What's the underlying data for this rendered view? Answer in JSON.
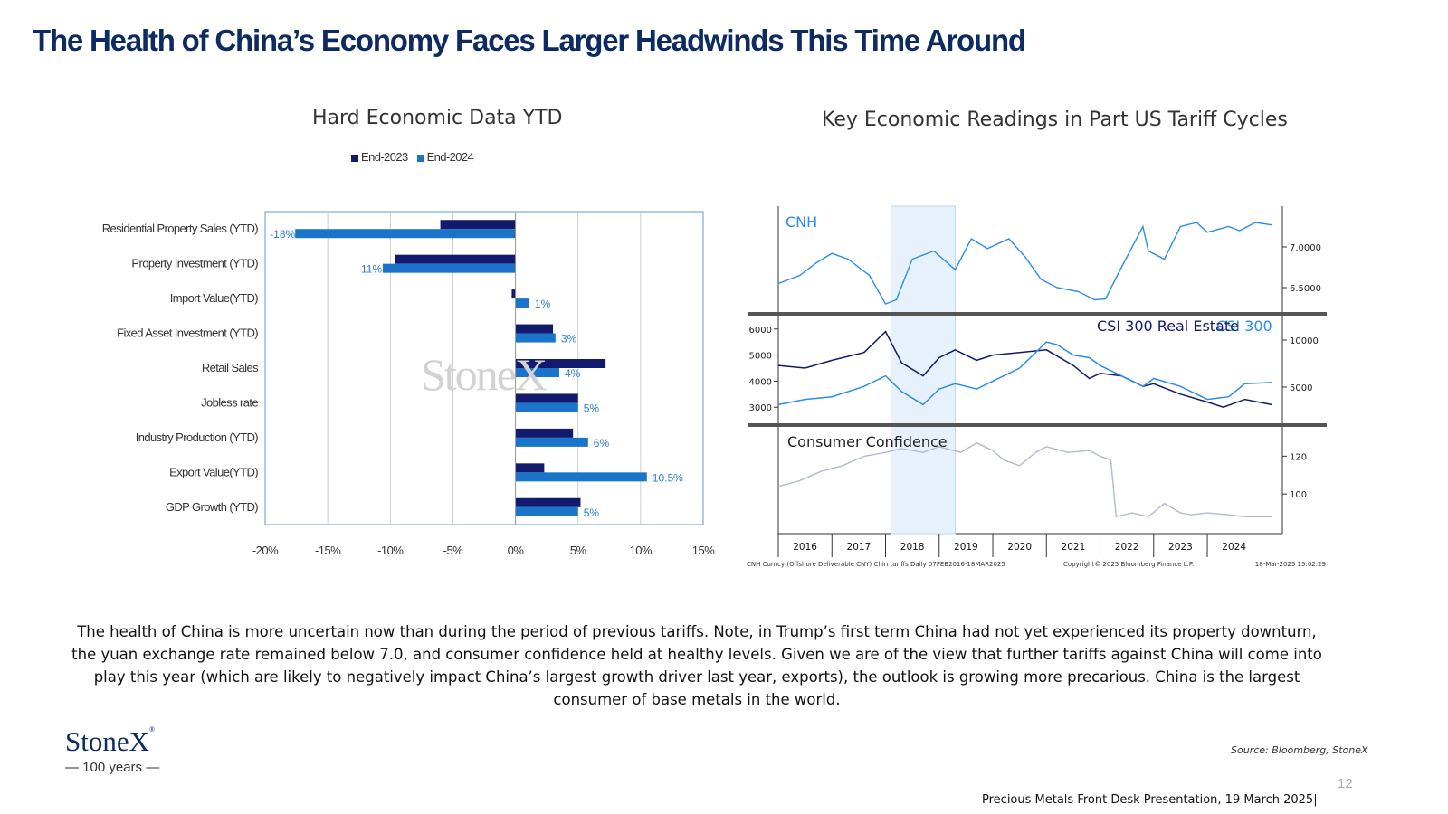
{
  "page": {
    "title": "The Health of China’s Economy Faces Larger Headwinds This Time Around",
    "paragraph": "The health of China is more uncertain now than during the period of previous tariffs. Note, in Trump’s first term China had not yet experienced its property downturn, the yuan exchange rate remained below 7.0, and consumer confidence held at healthy levels. Given we are of the view that further tariffs against China will come into play this year (which are likely to negatively impact China’s largest growth driver last year, exports), the outlook is growing more precarious. China is the largest consumer of base metals in the world.",
    "source": "Source: Bloomberg, StoneX",
    "page_number": "12",
    "footer": "Precious Metals Front Desk Presentation, 19 March 2025|",
    "logo": "StoneX",
    "logo_tagline": "— 100 years —",
    "watermark": "StoneX",
    "colors": {
      "title": "#0d2a63",
      "series_2023": "#121a6e",
      "series_2024": "#1a74c9"
    }
  },
  "chart_data": [
    {
      "type": "bar",
      "orientation": "horizontal",
      "title": "Hard Economic Data YTD",
      "categories": [
        "Residential Property Sales (YTD)",
        "Property Investment (YTD)",
        "Import Value(YTD)",
        "Fixed Asset Investment (YTD)",
        "Retail Sales",
        "Jobless rate",
        "Industry Production (YTD)",
        "Export Value(YTD)",
        "GDP Growth (YTD)"
      ],
      "series": [
        {
          "name": "End-2023",
          "color": "#121a6e",
          "values": [
            -6.0,
            -9.6,
            -0.3,
            3.0,
            7.2,
            5.0,
            4.6,
            2.3,
            5.2
          ]
        },
        {
          "name": "End-2024",
          "color": "#1a74c9",
          "values": [
            -17.6,
            -10.6,
            1.1,
            3.2,
            3.5,
            5.0,
            5.8,
            10.5,
            5.0
          ]
        }
      ],
      "data_labels": [
        "-18%",
        "-11%",
        "1%",
        "3%",
        "4%",
        "5%",
        "6%",
        "10.5%",
        "5%"
      ],
      "xlim": [
        -20,
        15
      ],
      "x_ticks": [
        "-20%",
        "-15%",
        "-10%",
        "-5%",
        "0%",
        "5%",
        "10%",
        "15%"
      ],
      "x_tick_values": [
        -20,
        -15,
        -10,
        -5,
        0,
        5,
        10,
        15
      ],
      "legend": "top",
      "grid": true
    },
    {
      "type": "line",
      "title": "Key Economic Readings in Part US Tariff Cycles",
      "x_ticks": [
        "2016",
        "2017",
        "2018",
        "2019",
        "2020",
        "2021",
        "2022",
        "2023",
        "2024"
      ],
      "highlight": {
        "from": 2018.1,
        "to": 2019.3
      },
      "footer_left": "CNH Curncy (Offshore Deliverable CNY) Chin tariffs  Daily 07FEB2016-18MAR2025",
      "footer_mid": "Copyright© 2025 Bloomberg Finance L.P.",
      "footer_right": "18-Mar-2025 15:02:29",
      "panels": [
        {
          "label": "CNH",
          "right_ticks": [
            "7.0000",
            "6.5000"
          ],
          "right_tick_values": [
            7.0,
            6.5
          ],
          "ylim": [
            6.2,
            7.5
          ],
          "series": [
            {
              "color": "#2b8de8",
              "x": [
                2016.0,
                2016.4,
                2016.7,
                2017.0,
                2017.3,
                2017.7,
                2018.0,
                2018.2,
                2018.5,
                2018.9,
                2019.3,
                2019.6,
                2019.9,
                2020.3,
                2020.6,
                2020.9,
                2021.2,
                2021.6,
                2021.9,
                2022.1,
                2022.4,
                2022.8,
                2022.9,
                2023.2,
                2023.5,
                2023.8,
                2024.0,
                2024.4,
                2024.6,
                2024.9,
                2025.2
              ],
              "y": [
                6.55,
                6.65,
                6.8,
                6.92,
                6.85,
                6.65,
                6.3,
                6.35,
                6.85,
                6.95,
                6.72,
                7.1,
                6.98,
                7.1,
                6.88,
                6.6,
                6.5,
                6.45,
                6.35,
                6.36,
                6.75,
                7.25,
                6.95,
                6.85,
                7.25,
                7.3,
                7.18,
                7.25,
                7.2,
                7.3,
                7.27
              ]
            }
          ]
        },
        {
          "label": "CSI 300 Real Estate",
          "label2": "CSI 300",
          "left_ticks": [
            "6000",
            "5000",
            "4000",
            "3000"
          ],
          "left_tick_values": [
            6000,
            5000,
            4000,
            3000
          ],
          "right_ticks": [
            "10000",
            "5000"
          ],
          "right_tick_values": [
            10000,
            5000
          ],
          "series": [
            {
              "name": "CSI 300 Real Estate",
              "color": "#121a6e",
              "x": [
                2016.0,
                2016.5,
                2017.0,
                2017.6,
                2018.0,
                2018.3,
                2018.7,
                2019.0,
                2019.3,
                2019.7,
                2020.0,
                2020.5,
                2021.0,
                2021.5,
                2021.8,
                2022.0,
                2022.4,
                2022.8,
                2023.0,
                2023.5,
                2024.0,
                2024.3,
                2024.7,
                2025.2
              ],
              "y": [
                4600,
                4500,
                4800,
                5100,
                5900,
                4700,
                4200,
                4900,
                5200,
                4800,
                5000,
                5100,
                5200,
                4600,
                4100,
                4300,
                4200,
                3800,
                3900,
                3500,
                3200,
                3000,
                3300,
                3100
              ]
            },
            {
              "name": "CSI 300",
              "color": "#2b8de8",
              "x": [
                2016.0,
                2016.5,
                2017.0,
                2017.6,
                2018.0,
                2018.3,
                2018.7,
                2019.0,
                2019.3,
                2019.7,
                2020.0,
                2020.5,
                2021.0,
                2021.2,
                2021.5,
                2021.8,
                2022.0,
                2022.4,
                2022.8,
                2023.0,
                2023.5,
                2024.0,
                2024.4,
                2024.7,
                2025.2
              ],
              "y": [
                3100,
                3300,
                3400,
                3800,
                4200,
                3600,
                3100,
                3700,
                3900,
                3700,
                4000,
                4500,
                5500,
                5400,
                5000,
                4900,
                4600,
                4200,
                3800,
                4100,
                3800,
                3300,
                3400,
                3900,
                3950
              ]
            }
          ]
        },
        {
          "label": "Consumer Confidence",
          "right_ticks": [
            "120",
            "100"
          ],
          "right_tick_values": [
            120,
            100
          ],
          "ylim": [
            80,
            135
          ],
          "series": [
            {
              "color": "#b0bccb",
              "x": [
                2016.0,
                2016.4,
                2016.8,
                2017.2,
                2017.6,
                2018.0,
                2018.3,
                2018.7,
                2019.0,
                2019.4,
                2019.7,
                2020.0,
                2020.2,
                2020.5,
                2020.8,
                2021.0,
                2021.4,
                2021.8,
                2022.0,
                2022.2,
                2022.3,
                2022.6,
                2022.9,
                2023.2,
                2023.5,
                2023.7,
                2024.0,
                2024.4,
                2024.7,
                2025.2
              ],
              "y": [
                104,
                107,
                112,
                115,
                120,
                122,
                124,
                122,
                125,
                122,
                127,
                123,
                118,
                115,
                122,
                125,
                122,
                123,
                120,
                118,
                88,
                90,
                88,
                95,
                90,
                89,
                90,
                89,
                88,
                88
              ]
            }
          ]
        }
      ]
    }
  ]
}
